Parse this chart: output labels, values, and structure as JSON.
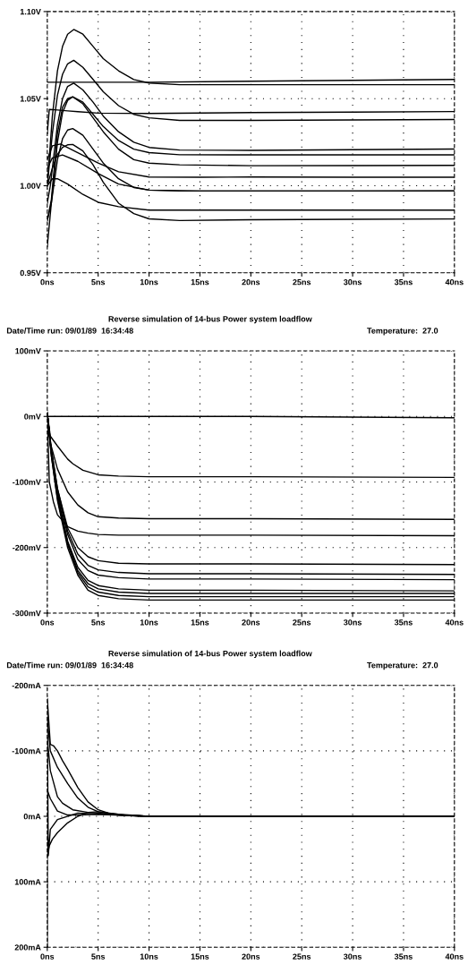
{
  "chart_data": [
    {
      "type": "line",
      "xlim": [
        0,
        40
      ],
      "ylim": [
        0.95,
        1.1
      ],
      "xticks": [
        {
          "value": 0,
          "label": "0ns"
        },
        {
          "value": 5,
          "label": "5ns"
        },
        {
          "value": 10,
          "label": "10ns"
        },
        {
          "value": 15,
          "label": "15ns"
        },
        {
          "value": 20,
          "label": "20ns"
        },
        {
          "value": 25,
          "label": "25ns"
        },
        {
          "value": 30,
          "label": "30ns"
        },
        {
          "value": 35,
          "label": "35ns"
        },
        {
          "value": 40,
          "label": "40ns"
        }
      ],
      "yticks": [
        {
          "value": 0.95,
          "label": "0.95V"
        },
        {
          "value": 1.0,
          "label": "1.00V"
        },
        {
          "value": 1.05,
          "label": "1.05V"
        },
        {
          "value": 1.1,
          "label": "1.10V"
        }
      ],
      "grid": true,
      "legend": false,
      "marker": "none",
      "line_style": "solid",
      "series": [
        {
          "color": "#000000",
          "x": [
            0,
            0.5,
            1,
            1.5,
            2,
            2.6,
            3.5,
            4.5,
            5.5,
            7,
            8.5,
            10,
            13,
            20,
            30,
            40
          ],
          "values": [
            1.0,
            1.04,
            1.066,
            1.08,
            1.087,
            1.0897,
            1.087,
            1.08,
            1.073,
            1.066,
            1.061,
            1.059,
            1.058,
            1.058,
            1.058,
            1.058
          ]
        },
        {
          "color": "#000000",
          "x": [
            0,
            10,
            20,
            30,
            40
          ],
          "values": [
            1.0594,
            1.0594,
            1.06,
            1.0605,
            1.061
          ]
        },
        {
          "color": "#000000",
          "x": [
            0,
            0.5,
            1,
            1.5,
            2,
            2.6,
            3.5,
            4.5,
            5.5,
            7,
            8.5,
            10,
            13,
            20,
            30,
            40
          ],
          "values": [
            1.0,
            1.03,
            1.052,
            1.064,
            1.07,
            1.072,
            1.068,
            1.061,
            1.054,
            1.046,
            1.041,
            1.039,
            1.0375,
            1.0375,
            1.0378,
            1.038
          ]
        },
        {
          "color": "#000000",
          "x": [
            0,
            0.2,
            1,
            2,
            3,
            5,
            10,
            20,
            30,
            40
          ],
          "values": [
            1.03,
            1.0438,
            1.0435,
            1.043,
            1.0425,
            1.0417,
            1.0415,
            1.042,
            1.0423,
            1.0426
          ]
        },
        {
          "color": "#000000",
          "x": [
            0,
            0.3,
            1,
            1.5,
            2,
            2.6,
            3.5,
            4.5,
            5.5,
            7,
            8.5,
            10,
            13,
            20,
            30,
            40
          ],
          "values": [
            0.99,
            1.0,
            1.035,
            1.05,
            1.057,
            1.0589,
            1.055,
            1.048,
            1.04,
            1.031,
            1.025,
            1.022,
            1.0205,
            1.0203,
            1.0207,
            1.0211
          ]
        },
        {
          "color": "#000000",
          "x": [
            0,
            0.4,
            1,
            1.5,
            2,
            2.5,
            3.5,
            4.5,
            5.5,
            7,
            8.5,
            10,
            13,
            20,
            30,
            40
          ],
          "values": [
            0.98,
            0.992,
            1.03,
            1.045,
            1.05,
            1.0511,
            1.048,
            1.041,
            1.034,
            1.026,
            1.021,
            1.019,
            1.0178,
            1.0177,
            1.0177,
            1.0177
          ]
        },
        {
          "color": "#000000",
          "x": [
            0,
            0.4,
            1,
            1.5,
            2,
            2.5,
            3.5,
            4.5,
            5.5,
            7,
            8.5,
            10,
            13,
            20,
            30,
            40
          ],
          "values": [
            0.98,
            0.99,
            1.025,
            1.042,
            1.049,
            1.051,
            1.047,
            1.039,
            1.031,
            1.021,
            1.015,
            1.013,
            1.012,
            1.0115,
            1.0116,
            1.0117
          ]
        },
        {
          "color": "#000000",
          "x": [
            0,
            0.4,
            1,
            1.5,
            2,
            2.5,
            3.5,
            4.5,
            5.5,
            7,
            8.5,
            10,
            13,
            20,
            30,
            40
          ],
          "values": [
            0.965,
            0.99,
            1.015,
            1.027,
            1.032,
            1.0328,
            1.029,
            1.021,
            1.013,
            1.004,
            0.999,
            0.9975,
            0.997,
            0.997,
            0.997,
            0.9971
          ]
        },
        {
          "color": "#000000",
          "x": [
            0,
            0.5,
            1,
            1.5,
            2,
            2.5,
            3.5,
            4.5,
            5.5,
            7,
            8.5,
            10,
            13,
            20,
            30,
            40
          ],
          "values": [
            1.0,
            1.01,
            1.018,
            1.022,
            1.0235,
            1.0237,
            1.02,
            1.012,
            1.002,
            0.99,
            0.984,
            0.981,
            0.98,
            0.9805,
            0.9807,
            0.9809
          ]
        },
        {
          "color": "#000000",
          "x": [
            0,
            0.5,
            1.3,
            3,
            5,
            7,
            10,
            15,
            20,
            30,
            40
          ],
          "values": [
            1.015,
            1.0229,
            1.024,
            1.019,
            1.013,
            1.008,
            1.005,
            1.0049,
            1.005,
            1.0049,
            1.0049
          ]
        },
        {
          "color": "#000000",
          "x": [
            0,
            0.5,
            1.5,
            3,
            5,
            7,
            10,
            15,
            20,
            30,
            40
          ],
          "values": [
            1.01,
            1.016,
            1.0177,
            1.014,
            1.007,
            1.001,
            0.9975,
            0.997,
            0.997,
            0.997,
            0.997
          ]
        },
        {
          "color": "#000000",
          "x": [
            0,
            0.5,
            1,
            2,
            3.5,
            5,
            7,
            10,
            15,
            20,
            30,
            40
          ],
          "values": [
            1.0,
            1.004,
            1.004,
            1.001,
            0.995,
            0.9905,
            0.988,
            0.986,
            0.986,
            0.986,
            0.986,
            0.986
          ]
        }
      ]
    },
    {
      "type": "line",
      "title": "Reverse simulation of 14-bus Power system loadflow",
      "annotations": [
        "Date/Time run: 09/01/89  16:34:48",
        "Temperature:  27.0"
      ],
      "xlim": [
        0,
        40
      ],
      "ylim": [
        -300,
        100
      ],
      "xticks": [
        {
          "value": 0,
          "label": "0ns"
        },
        {
          "value": 5,
          "label": "5ns"
        },
        {
          "value": 10,
          "label": "10ns"
        },
        {
          "value": 15,
          "label": "15ns"
        },
        {
          "value": 20,
          "label": "20ns"
        },
        {
          "value": 25,
          "label": "25ns"
        },
        {
          "value": 30,
          "label": "30ns"
        },
        {
          "value": 35,
          "label": "35ns"
        },
        {
          "value": 40,
          "label": "40ns"
        }
      ],
      "yticks": [
        {
          "value": -300,
          "label": "-300mV"
        },
        {
          "value": -200,
          "label": "-200mV"
        },
        {
          "value": -100,
          "label": "-100mV"
        },
        {
          "value": 0,
          "label": "0mV"
        },
        {
          "value": 100,
          "label": "100mV"
        }
      ],
      "grid": true,
      "legend": false,
      "marker": "none",
      "line_style": "solid",
      "series": [
        {
          "color": "#000000",
          "x": [
            0,
            10,
            20,
            30,
            40
          ],
          "values": [
            0,
            0,
            0,
            -1,
            -2
          ]
        },
        {
          "color": "#000000",
          "x": [
            0,
            0.3,
            1,
            2,
            2.5,
            3.5,
            5,
            7,
            10,
            20,
            40
          ],
          "values": [
            5,
            -30,
            -45,
            -65,
            -72,
            -82,
            -89,
            -91,
            -92,
            -92,
            -93
          ]
        },
        {
          "color": "#000000",
          "x": [
            0,
            0.3,
            1,
            2,
            3,
            4,
            5,
            7,
            10,
            20,
            40
          ],
          "values": [
            5,
            -40,
            -80,
            -115,
            -135,
            -147,
            -153,
            -155,
            -156,
            -156,
            -157
          ]
        },
        {
          "color": "#000000",
          "x": [
            0,
            0.2,
            0.6,
            1,
            2,
            3,
            4,
            5,
            7,
            10,
            20,
            40
          ],
          "values": [
            5,
            -100,
            -130,
            -150,
            -168,
            -175,
            -178,
            -180,
            -181,
            -181,
            -181,
            -182
          ]
        },
        {
          "color": "#000000",
          "x": [
            0,
            0.4,
            1,
            2,
            3,
            4,
            5,
            7,
            10,
            20,
            40
          ],
          "values": [
            5,
            -50,
            -110,
            -170,
            -200,
            -214,
            -220,
            -224,
            -225,
            -225,
            -226
          ]
        },
        {
          "color": "#000000",
          "x": [
            0,
            0.4,
            1,
            2,
            3,
            4,
            5,
            7,
            10,
            20,
            40
          ],
          "values": [
            5,
            -50,
            -110,
            -175,
            -210,
            -227,
            -234,
            -238,
            -240,
            -240,
            -241
          ]
        },
        {
          "color": "#000000",
          "x": [
            0,
            0.4,
            1,
            2,
            3,
            4,
            5,
            7,
            10,
            20,
            40
          ],
          "values": [
            5,
            -55,
            -115,
            -180,
            -218,
            -235,
            -242,
            -246,
            -248,
            -248,
            -249
          ]
        },
        {
          "color": "#000000",
          "x": [
            0,
            0.4,
            1,
            2,
            3,
            4,
            5,
            7,
            10,
            20,
            40
          ],
          "values": [
            5,
            -55,
            -120,
            -190,
            -230,
            -250,
            -258,
            -263,
            -265,
            -265,
            -266
          ]
        },
        {
          "color": "#000000",
          "x": [
            0,
            0.4,
            1,
            2,
            3,
            4,
            5,
            7,
            10,
            20,
            40
          ],
          "values": [
            5,
            -55,
            -120,
            -192,
            -235,
            -255,
            -263,
            -268,
            -270,
            -270,
            -270
          ]
        },
        {
          "color": "#000000",
          "x": [
            0,
            0.4,
            1,
            2,
            3,
            4,
            5,
            7,
            10,
            20,
            40
          ],
          "values": [
            5,
            -60,
            -125,
            -195,
            -238,
            -260,
            -268,
            -273,
            -275,
            -275,
            -275
          ]
        },
        {
          "color": "#000000",
          "x": [
            0,
            0.4,
            1,
            2,
            3,
            4,
            5,
            7,
            10,
            20,
            40
          ],
          "values": [
            5,
            -60,
            -128,
            -200,
            -242,
            -265,
            -273,
            -278,
            -280,
            -280,
            -280
          ]
        }
      ]
    },
    {
      "type": "line",
      "title": "Reverse simulation of 14-bus Power system loadflow",
      "annotations": [
        "Date/Time run: 09/01/89  16:34:48",
        "Temperature:  27.0"
      ],
      "xlim": [
        0,
        40
      ],
      "ylim": [
        200,
        -200
      ],
      "xticks": [
        {
          "value": 0,
          "label": "0ns"
        },
        {
          "value": 5,
          "label": "5ns"
        },
        {
          "value": 10,
          "label": "10ns"
        },
        {
          "value": 15,
          "label": "15ns"
        },
        {
          "value": 20,
          "label": "20ns"
        },
        {
          "value": 25,
          "label": "25ns"
        },
        {
          "value": 30,
          "label": "30ns"
        },
        {
          "value": 35,
          "label": "35ns"
        },
        {
          "value": 40,
          "label": "40ns"
        }
      ],
      "yticks": [
        {
          "value": -200,
          "label": "-200mA"
        },
        {
          "value": -100,
          "label": "-100mA"
        },
        {
          "value": 0,
          "label": "0mA"
        },
        {
          "value": 100,
          "label": "100mA"
        },
        {
          "value": 200,
          "label": "200mA"
        }
      ],
      "grid": true,
      "legend": false,
      "marker": "none",
      "line_style": "solid",
      "series": [
        {
          "color": "#000000",
          "x": [
            0,
            0.3,
            0.6,
            1,
            1.5,
            2,
            3,
            4,
            5,
            6,
            8,
            10,
            20,
            40
          ],
          "values": [
            -180,
            -110,
            -108,
            -100,
            -85,
            -72,
            -44,
            -22,
            -10,
            -5,
            -1,
            0,
            0,
            0
          ]
        },
        {
          "color": "#000000",
          "x": [
            0,
            0.3,
            1,
            2,
            3,
            4,
            5,
            7,
            10,
            20,
            40
          ],
          "values": [
            -150,
            -100,
            -75,
            -50,
            -28,
            -14,
            -7,
            -2,
            0,
            0,
            0
          ]
        },
        {
          "color": "#000000",
          "x": [
            0,
            0.3,
            1,
            1.5,
            2.5,
            4,
            5,
            7,
            10,
            20,
            40
          ],
          "values": [
            -120,
            -70,
            -30,
            -20,
            -10,
            -6,
            -5,
            -2,
            0,
            0,
            0
          ]
        },
        {
          "color": "#000000",
          "x": [
            0,
            0.3,
            1,
            2,
            3,
            5,
            10,
            20,
            40
          ],
          "values": [
            -40,
            -27,
            -8,
            -2,
            -2,
            -3,
            0,
            0,
            0
          ]
        },
        {
          "color": "#000000",
          "x": [
            0,
            0.2,
            0.5,
            1,
            2,
            3,
            4,
            5,
            7,
            10,
            20,
            40
          ],
          "values": [
            60,
            45,
            35,
            25,
            10,
            0,
            -6,
            -7,
            -3,
            0,
            0,
            0
          ]
        },
        {
          "color": "#000000",
          "x": [
            0,
            0,
            0.1,
            0.3,
            1,
            3,
            10,
            40
          ],
          "values": [
            200,
            -160,
            60,
            20,
            5,
            -5,
            0,
            0
          ]
        }
      ]
    }
  ]
}
